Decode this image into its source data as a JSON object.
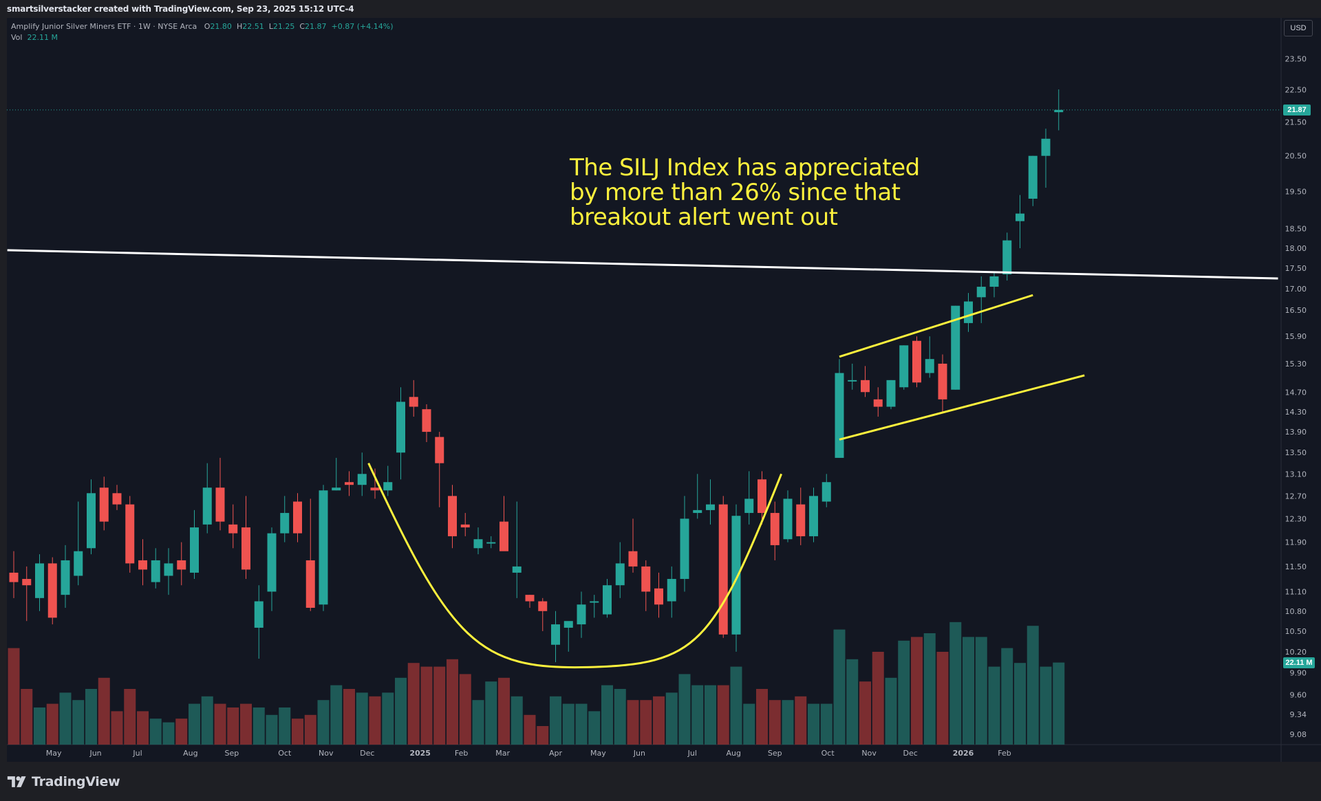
{
  "header": {
    "credit": "smartsilverstacker created with TradingView.com, Sep 23, 2025 15:12 UTC-4"
  },
  "legend": {
    "symbol": "Amplify Junior Silver Miners ETF · 1W · NYSE Arca",
    "o_label": "O",
    "o_value": "21.80",
    "h_label": "H",
    "h_value": "22.51",
    "l_label": "L",
    "l_value": "21.25",
    "c_label": "C",
    "c_value": "21.87",
    "change": "+0.87 (+4.14%)",
    "vol_label": "Vol",
    "vol_value": "22.11 M"
  },
  "currency_button": "USD",
  "annotation": {
    "line1": "The SILJ Index has appreciated",
    "line2": "by more than 26% since that",
    "line3": "breakout alert went out"
  },
  "footer": {
    "brand": "TradingView"
  },
  "colors": {
    "background": "#131722",
    "up": "#26a69a",
    "down": "#ef5350",
    "vol_up": "#1e5a57",
    "vol_down": "#7b2d30",
    "trendline": "#ffffff",
    "pattern": "#fdf13d",
    "price_tag": "#26a69a"
  },
  "chart_data": {
    "type": "candlestick",
    "scale": "log",
    "symbol": "SILJ",
    "interval": "1W",
    "currency": "USD",
    "y_ticks": [
      "23.50",
      "22.50",
      "21.50",
      "20.50",
      "19.50",
      "18.50",
      "18.00",
      "17.50",
      "17.00",
      "16.50",
      "15.90",
      "15.30",
      "14.70",
      "14.30",
      "13.90",
      "13.50",
      "13.10",
      "12.70",
      "12.30",
      "11.90",
      "11.50",
      "11.10",
      "10.80",
      "10.50",
      "10.20",
      "9.90",
      "9.60",
      "9.34",
      "9.08"
    ],
    "x_ticks": [
      "May",
      "Jun",
      "Jul",
      "Aug",
      "Sep",
      "Oct",
      "Nov",
      "Dec",
      "2025",
      "Feb",
      "Mar",
      "Apr",
      "May",
      "Jun",
      "Jul",
      "Aug",
      "Sep",
      "Oct",
      "Nov",
      "Dec",
      "2026",
      "Feb"
    ],
    "last_price": "21.87",
    "last_volume": "22.11 M",
    "candles": [
      {
        "o": 11.4,
        "h": 11.75,
        "l": 11.0,
        "c": 11.25,
        "v": 26
      },
      {
        "o": 11.3,
        "h": 11.5,
        "l": 10.65,
        "c": 11.2,
        "v": 15
      },
      {
        "o": 11.0,
        "h": 11.7,
        "l": 10.8,
        "c": 11.55,
        "v": 10
      },
      {
        "o": 11.55,
        "h": 11.65,
        "l": 10.6,
        "c": 10.7,
        "v": 11
      },
      {
        "o": 11.05,
        "h": 11.85,
        "l": 10.85,
        "c": 11.6,
        "v": 14
      },
      {
        "o": 11.35,
        "h": 12.6,
        "l": 11.2,
        "c": 11.75,
        "v": 12
      },
      {
        "o": 11.8,
        "h": 13.0,
        "l": 11.7,
        "c": 12.75,
        "v": 15
      },
      {
        "o": 12.85,
        "h": 13.05,
        "l": 12.1,
        "c": 12.25,
        "v": 18
      },
      {
        "o": 12.75,
        "h": 12.9,
        "l": 12.45,
        "c": 12.55,
        "v": 9
      },
      {
        "o": 12.55,
        "h": 12.7,
        "l": 11.4,
        "c": 11.55,
        "v": 15
      },
      {
        "o": 11.6,
        "h": 11.95,
        "l": 11.2,
        "c": 11.45,
        "v": 9
      },
      {
        "o": 11.25,
        "h": 11.8,
        "l": 11.15,
        "c": 11.6,
        "v": 7
      },
      {
        "o": 11.35,
        "h": 11.8,
        "l": 11.05,
        "c": 11.55,
        "v": 6
      },
      {
        "o": 11.6,
        "h": 11.9,
        "l": 11.2,
        "c": 11.45,
        "v": 7
      },
      {
        "o": 11.4,
        "h": 12.45,
        "l": 11.3,
        "c": 12.15,
        "v": 11
      },
      {
        "o": 12.2,
        "h": 13.3,
        "l": 12.05,
        "c": 12.85,
        "v": 13
      },
      {
        "o": 12.85,
        "h": 13.4,
        "l": 12.1,
        "c": 12.25,
        "v": 11
      },
      {
        "o": 12.2,
        "h": 12.55,
        "l": 11.8,
        "c": 12.05,
        "v": 10
      },
      {
        "o": 12.15,
        "h": 12.7,
        "l": 11.3,
        "c": 11.45,
        "v": 11
      },
      {
        "o": 10.55,
        "h": 11.2,
        "l": 10.1,
        "c": 10.95,
        "v": 10
      },
      {
        "o": 11.1,
        "h": 12.15,
        "l": 10.8,
        "c": 12.05,
        "v": 8
      },
      {
        "o": 12.05,
        "h": 12.7,
        "l": 11.9,
        "c": 12.4,
        "v": 10
      },
      {
        "o": 12.6,
        "h": 12.75,
        "l": 11.9,
        "c": 12.05,
        "v": 7
      },
      {
        "o": 11.6,
        "h": 12.65,
        "l": 10.8,
        "c": 10.85,
        "v": 8
      },
      {
        "o": 10.9,
        "h": 12.9,
        "l": 10.8,
        "c": 12.8,
        "v": 12
      },
      {
        "o": 12.8,
        "h": 13.4,
        "l": 12.8,
        "c": 12.85,
        "v": 16
      },
      {
        "o": 12.95,
        "h": 13.15,
        "l": 12.7,
        "c": 12.9,
        "v": 15
      },
      {
        "o": 12.9,
        "h": 13.5,
        "l": 12.7,
        "c": 13.1,
        "v": 14
      },
      {
        "o": 12.85,
        "h": 13.2,
        "l": 12.65,
        "c": 12.8,
        "v": 13
      },
      {
        "o": 12.8,
        "h": 13.25,
        "l": 12.7,
        "c": 12.95,
        "v": 14
      },
      {
        "o": 13.5,
        "h": 14.8,
        "l": 13.0,
        "c": 14.5,
        "v": 18
      },
      {
        "o": 14.6,
        "h": 14.95,
        "l": 14.2,
        "c": 14.4,
        "v": 22
      },
      {
        "o": 14.35,
        "h": 14.45,
        "l": 13.7,
        "c": 13.9,
        "v": 21
      },
      {
        "o": 13.8,
        "h": 13.9,
        "l": 12.5,
        "c": 13.3,
        "v": 21
      },
      {
        "o": 12.7,
        "h": 12.9,
        "l": 11.8,
        "c": 12.0,
        "v": 23
      },
      {
        "o": 12.2,
        "h": 12.4,
        "l": 12.0,
        "c": 12.15,
        "v": 19
      },
      {
        "o": 11.8,
        "h": 12.15,
        "l": 11.7,
        "c": 11.95,
        "v": 12
      },
      {
        "o": 11.9,
        "h": 12.0,
        "l": 11.8,
        "c": 11.9,
        "v": 17
      },
      {
        "o": 12.25,
        "h": 12.7,
        "l": 11.8,
        "c": 11.75,
        "v": 18
      },
      {
        "o": 11.4,
        "h": 12.6,
        "l": 11.0,
        "c": 11.5,
        "v": 13
      },
      {
        "o": 11.05,
        "h": 11.05,
        "l": 10.85,
        "c": 10.95,
        "v": 8
      },
      {
        "o": 10.95,
        "h": 11.0,
        "l": 10.5,
        "c": 10.8,
        "v": 5
      },
      {
        "o": 10.3,
        "h": 10.8,
        "l": 10.05,
        "c": 10.6,
        "v": 13
      },
      {
        "o": 10.55,
        "h": 10.6,
        "l": 10.2,
        "c": 10.65,
        "v": 11
      },
      {
        "o": 10.6,
        "h": 11.1,
        "l": 10.4,
        "c": 10.9,
        "v": 11
      },
      {
        "o": 10.95,
        "h": 11.05,
        "l": 10.7,
        "c": 10.95,
        "v": 9
      },
      {
        "o": 10.75,
        "h": 11.3,
        "l": 10.7,
        "c": 11.2,
        "v": 16
      },
      {
        "o": 11.2,
        "h": 11.9,
        "l": 11.0,
        "c": 11.55,
        "v": 15
      },
      {
        "o": 11.75,
        "h": 12.3,
        "l": 11.4,
        "c": 11.5,
        "v": 12
      },
      {
        "o": 11.5,
        "h": 11.6,
        "l": 10.8,
        "c": 11.1,
        "v": 12
      },
      {
        "o": 11.15,
        "h": 11.4,
        "l": 10.7,
        "c": 10.9,
        "v": 13
      },
      {
        "o": 10.95,
        "h": 11.5,
        "l": 10.7,
        "c": 11.3,
        "v": 14
      },
      {
        "o": 11.3,
        "h": 12.7,
        "l": 11.1,
        "c": 12.3,
        "v": 19
      },
      {
        "o": 12.4,
        "h": 13.1,
        "l": 12.3,
        "c": 12.45,
        "v": 16
      },
      {
        "o": 12.45,
        "h": 13.0,
        "l": 12.2,
        "c": 12.55,
        "v": 16
      },
      {
        "o": 12.55,
        "h": 12.7,
        "l": 10.4,
        "c": 10.45,
        "v": 16
      },
      {
        "o": 10.45,
        "h": 12.55,
        "l": 10.2,
        "c": 12.35,
        "v": 21
      },
      {
        "o": 12.4,
        "h": 13.15,
        "l": 12.2,
        "c": 12.65,
        "v": 11
      },
      {
        "o": 13.0,
        "h": 13.15,
        "l": 12.2,
        "c": 12.4,
        "v": 15
      },
      {
        "o": 12.4,
        "h": 12.6,
        "l": 11.6,
        "c": 11.85,
        "v": 12
      },
      {
        "o": 11.95,
        "h": 12.8,
        "l": 11.9,
        "c": 12.65,
        "v": 12
      },
      {
        "o": 12.55,
        "h": 12.85,
        "l": 11.85,
        "c": 12.0,
        "v": 13
      },
      {
        "o": 12.0,
        "h": 12.85,
        "l": 11.9,
        "c": 12.7,
        "v": 11
      },
      {
        "o": 12.6,
        "h": 13.1,
        "l": 12.5,
        "c": 12.95,
        "v": 11
      },
      {
        "o": 13.4,
        "h": 15.4,
        "l": 13.4,
        "c": 15.1,
        "v": 31
      },
      {
        "o": 14.95,
        "h": 15.3,
        "l": 14.75,
        "c": 14.95,
        "v": 23
      },
      {
        "o": 14.95,
        "h": 15.25,
        "l": 14.6,
        "c": 14.7,
        "v": 17
      },
      {
        "o": 14.55,
        "h": 14.8,
        "l": 14.2,
        "c": 14.4,
        "v": 25
      },
      {
        "o": 14.4,
        "h": 14.95,
        "l": 14.35,
        "c": 14.95,
        "v": 18
      },
      {
        "o": 14.8,
        "h": 15.7,
        "l": 14.75,
        "c": 15.7,
        "v": 28
      },
      {
        "o": 15.8,
        "h": 15.9,
        "l": 14.8,
        "c": 14.9,
        "v": 29
      },
      {
        "o": 15.1,
        "h": 15.9,
        "l": 15.0,
        "c": 15.4,
        "v": 30
      },
      {
        "o": 15.3,
        "h": 15.5,
        "l": 14.3,
        "c": 14.55,
        "v": 25
      },
      {
        "o": 14.75,
        "h": 16.6,
        "l": 14.75,
        "c": 16.6,
        "v": 33
      },
      {
        "o": 16.2,
        "h": 16.9,
        "l": 16.0,
        "c": 16.7,
        "v": 29
      },
      {
        "o": 16.8,
        "h": 17.3,
        "l": 16.2,
        "c": 17.05,
        "v": 29
      },
      {
        "o": 17.05,
        "h": 17.4,
        "l": 16.8,
        "c": 17.3,
        "v": 21
      },
      {
        "o": 17.35,
        "h": 18.4,
        "l": 17.2,
        "c": 18.2,
        "v": 26
      },
      {
        "o": 18.7,
        "h": 19.4,
        "l": 18.0,
        "c": 18.9,
        "v": 22
      },
      {
        "o": 19.3,
        "h": 20.5,
        "l": 19.1,
        "c": 20.5,
        "v": 32
      },
      {
        "o": 20.5,
        "h": 21.3,
        "l": 19.6,
        "c": 21.0,
        "v": 21
      },
      {
        "o": 21.8,
        "h": 22.51,
        "l": 21.25,
        "c": 21.87,
        "v": 22.11
      }
    ],
    "trendlines": [
      {
        "name": "resistance",
        "color": "white",
        "from": {
          "bar": -0.5,
          "price": 17.95
        },
        "to": {
          "bar": 98,
          "price": 17.25
        }
      },
      {
        "name": "channel-upper",
        "color": "yellow",
        "from": {
          "bar": 64,
          "price": 15.45
        },
        "to": {
          "bar": 79,
          "price": 16.85
        }
      },
      {
        "name": "channel-lower",
        "color": "yellow",
        "from": {
          "bar": 64,
          "price": 13.75
        },
        "to": {
          "bar": 83,
          "price": 15.05
        }
      }
    ],
    "pattern": {
      "name": "cup",
      "color": "yellow",
      "start": {
        "bar": 27.5,
        "price": 13.3
      },
      "bottom": {
        "bar": 44.5,
        "price": 9.98
      },
      "end": {
        "bar": 59.5,
        "price": 13.1
      }
    }
  }
}
